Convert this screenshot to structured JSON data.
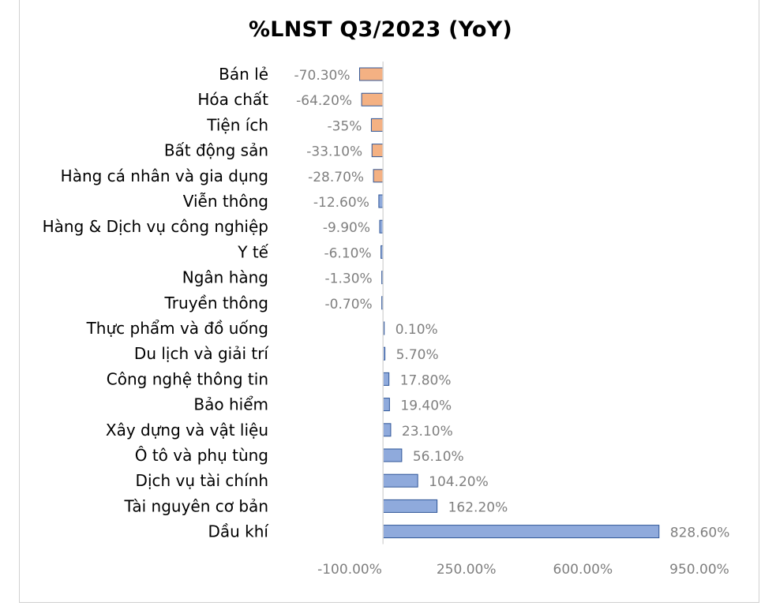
{
  "chart_data": {
    "type": "bar",
    "orientation": "horizontal",
    "title": "%LNST Q3/2023 (YoY)",
    "xlabel": "",
    "ylabel": "",
    "xlim": [
      -100,
      950
    ],
    "grid": false,
    "legend": "none",
    "ticks": [
      {
        "value": -100,
        "label": "-100.00%"
      },
      {
        "value": 250,
        "label": "250.00%"
      },
      {
        "value": 600,
        "label": "600.00%"
      },
      {
        "value": 950,
        "label": "950.00%"
      }
    ],
    "categories": [
      "Bán lẻ",
      "Hóa chất",
      "Tiện ích",
      "Bất động sản",
      "Hàng cá nhân và gia dụng",
      "Viễn thông",
      "Hàng & Dịch vụ công nghiệp",
      "Y tế",
      "Ngân hàng",
      "Truyền thông",
      "Thực phẩm và đồ uống",
      "Du lịch và giải trí",
      "Công nghệ thông tin",
      "Bảo hiểm",
      "Xây dựng và vật liệu",
      "Ô tô và phụ tùng",
      "Dịch vụ tài chính",
      "Tài nguyên cơ bản",
      "Dầu khí"
    ],
    "values": [
      -70.3,
      -64.2,
      -35,
      -33.1,
      -28.7,
      -12.6,
      -9.9,
      -6.1,
      -1.3,
      -0.7,
      0.1,
      5.7,
      17.8,
      19.4,
      23.1,
      56.1,
      104.2,
      162.2,
      828.6
    ],
    "data_labels": [
      "-70.30%",
      "-64.20%",
      "-35%",
      "-33.10%",
      "-28.70%",
      "-12.60%",
      "-9.90%",
      "-6.10%",
      "-1.30%",
      "-0.70%",
      "0.10%",
      "5.70%",
      "17.80%",
      "19.40%",
      "23.10%",
      "56.10%",
      "104.20%",
      "162.20%",
      "828.60%"
    ],
    "colors": {
      "negative_fill": "#f4b183",
      "negative_top_fill": "#f4b183",
      "positive_fill": "#8faadc",
      "bar_stroke": "#2f5597",
      "axis_line": "#d9d9d9",
      "category_text": "#000000",
      "value_text": "#7f7f7f"
    },
    "highlighted_top_n": 5
  }
}
